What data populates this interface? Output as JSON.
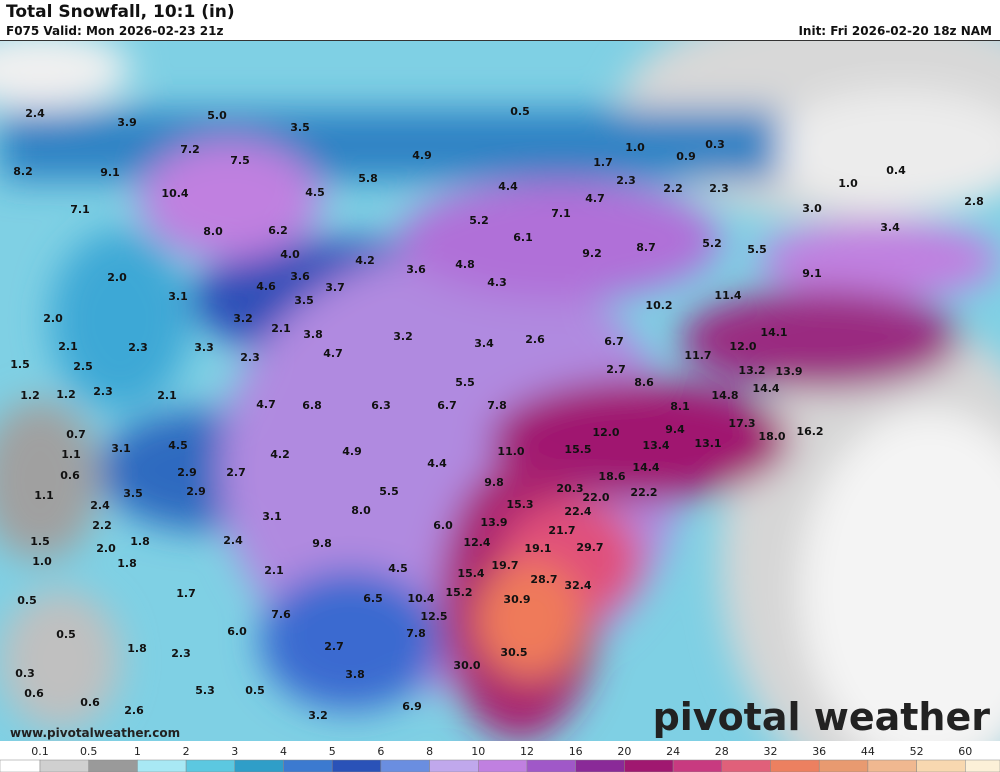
{
  "header": {
    "title": "Total Snowfall, 10:1 (in)",
    "valid": "F075 Valid: Mon 2026-02-23 21z",
    "init": "Init: Fri 2026-02-20 18z NAM"
  },
  "labels": [
    "2.4",
    "3.9",
    "5.0",
    "0.5",
    "3.5",
    "7.2",
    "8.2",
    "9.1",
    "7.5",
    "4.9",
    "1.0",
    "0.3",
    "0.9",
    "1.7",
    "10.4",
    "4.5",
    "5.8",
    "4.4",
    "2.3",
    "4.7",
    "2.2",
    "2.3",
    "1.0",
    "0.4",
    "7.1",
    "8.0",
    "6.2",
    "5.2",
    "7.1",
    "6.1",
    "3.0",
    "2.8",
    "3.4",
    "8.7",
    "9.2",
    "5.2",
    "5.5",
    "4.0",
    "4.2",
    "3.6",
    "4.8",
    "2.0",
    "3.6",
    "4.6",
    "3.7",
    "4.3",
    "9.1",
    "3.1",
    "3.5",
    "10.2",
    "11.4",
    "2.0",
    "3.2",
    "2.1",
    "3.8",
    "3.2",
    "14.1",
    "2.1",
    "2.3",
    "3.3",
    "2.3",
    "4.7",
    "3.4",
    "2.6",
    "6.7",
    "12.0",
    "11.7",
    "2.5",
    "1.5",
    "2.7",
    "13.2",
    "13.9",
    "5.5",
    "8.6",
    "14.4",
    "1.2",
    "1.2",
    "2.3",
    "2.1",
    "14.8",
    "4.7",
    "6.8",
    "6.3",
    "6.7",
    "7.8",
    "8.1",
    "0.7",
    "17.3",
    "18.0",
    "16.2",
    "9.4",
    "12.0",
    "13.4",
    "13.1",
    "1.1",
    "3.1",
    "4.5",
    "4.2",
    "4.9",
    "11.0",
    "15.5",
    "4.4",
    "14.4",
    "0.6",
    "2.9",
    "2.7",
    "18.6",
    "9.8",
    "20.3",
    "1.1",
    "2.4",
    "3.5",
    "2.9",
    "5.5",
    "22.2",
    "22.0",
    "15.3",
    "22.4",
    "8.0",
    "2.2",
    "3.1",
    "6.0",
    "13.9",
    "21.7",
    "1.5",
    "2.0",
    "1.8",
    "2.4",
    "9.8",
    "12.4",
    "19.1",
    "29.7",
    "1.0",
    "1.8",
    "2.1",
    "4.5",
    "19.7",
    "15.4",
    "28.7",
    "32.4",
    "1.7",
    "15.2",
    "0.5",
    "10.4",
    "6.5",
    "30.9",
    "7.6",
    "12.5",
    "7.8",
    "0.5",
    "6.0",
    "1.8",
    "2.7",
    "2.3",
    "30.5",
    "30.0",
    "0.3",
    "3.8",
    "0.6",
    "5.3",
    "0.5",
    "0.6",
    "6.9",
    "2.6",
    "3.2"
  ],
  "legend": {
    "ticks": [
      "0.1",
      "0.5",
      "1",
      "2",
      "3",
      "4",
      "5",
      "6",
      "8",
      "10",
      "12",
      "16",
      "20",
      "24",
      "28",
      "32",
      "36",
      "44",
      "52",
      "60"
    ],
    "colors": [
      "#ffffff",
      "#d0d0d0",
      "#9a9a9a",
      "#a8e8f4",
      "#5cc8e0",
      "#2f9ec8",
      "#3c7ad0",
      "#2a52b8",
      "#6a8ee0",
      "#c0a8ec",
      "#c080e0",
      "#a058c8",
      "#8a2a98",
      "#a01870",
      "#c83a80",
      "#e0607a",
      "#ec8060",
      "#e89a70",
      "#f0b890",
      "#f8d8b0",
      "#fcf0d8"
    ]
  },
  "footer": {
    "url": "www.pivotalweather.com",
    "brand": "pivotal weather"
  }
}
